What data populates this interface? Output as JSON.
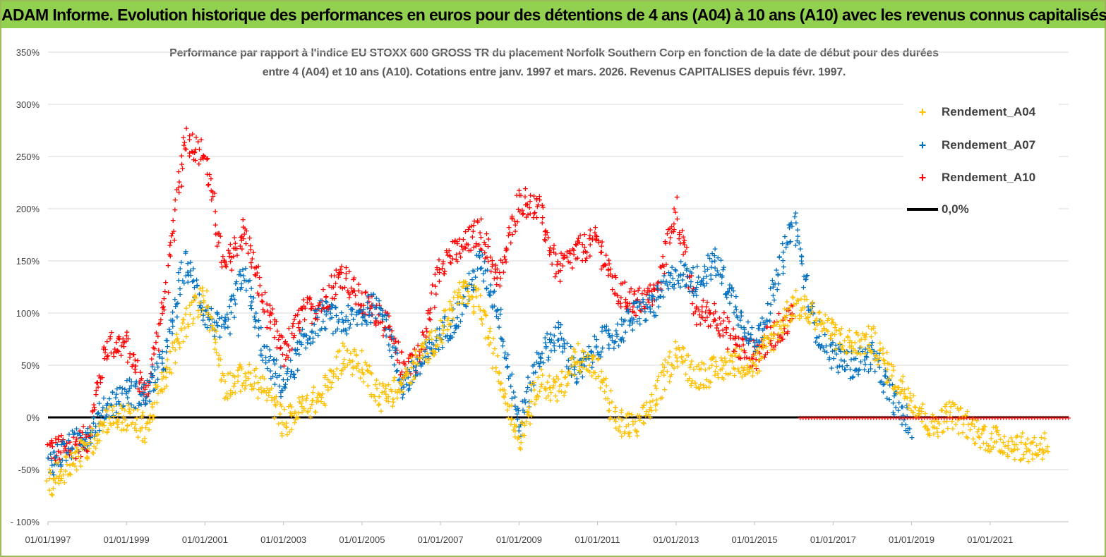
{
  "banner": {
    "text": "ADAM Informe. Evolution historique des performances en euros pour des détentions de 4 ans (A04) à 10 ans (A10) avec les revenus connus capitalisés"
  },
  "colors": {
    "banner_bg": "#92d050",
    "frame": "#9bbb59",
    "series_a04": "#ffc000",
    "series_a07": "#0070c0",
    "series_a10": "#ff0000",
    "zero_line": "#000000",
    "grid": "#d9d9d9"
  },
  "chart_data": {
    "type": "scatter",
    "title_lines": [
      "Performance par rapport à l'indice EU STOXX 600 GROSS TR  du placement Norfolk Southern Corp en fonction de la date de début pour des durées",
      "entre 4 (A04) et 10 ans (A10). Cotations entre janv. 1997 et mars. 2026. Revenus CAPITALISES depuis févr. 1997."
    ],
    "y_ticks": [
      "350%",
      "300%",
      "250%",
      "200%",
      "150%",
      "100%",
      "50%",
      "0%",
      "-50%",
      "- 100%"
    ],
    "ylim": [
      -100,
      350
    ],
    "x_ticks": [
      "01/01/1997",
      "01/01/1999",
      "01/01/2001",
      "01/01/2003",
      "01/01/2005",
      "01/01/2007",
      "01/01/2009",
      "01/01/2011",
      "01/01/2013",
      "01/01/2015",
      "01/01/2017",
      "01/01/2019",
      "01/01/2021"
    ],
    "xlim": [
      "1997-01-01",
      "2023-01-01"
    ],
    "grid": "horizontal",
    "legend_position": "top-right",
    "series": [
      {
        "name": "Rendement_A04",
        "x": [
          "1997-01-01",
          "1997-07-01",
          "1998-01-01",
          "1998-07-01",
          "1999-01-01",
          "1999-07-01",
          "2000-01-01",
          "2000-07-01",
          "2001-01-01",
          "2001-07-01",
          "2002-01-01",
          "2002-07-01",
          "2003-01-01",
          "2003-07-01",
          "2004-01-01",
          "2004-07-01",
          "2005-01-01",
          "2005-07-01",
          "2006-01-01",
          "2006-07-01",
          "2007-01-01",
          "2007-07-01",
          "2008-01-01",
          "2008-07-01",
          "2009-01-01",
          "2009-07-01",
          "2010-01-01",
          "2010-07-01",
          "2011-01-01",
          "2011-07-01",
          "2012-01-01",
          "2012-07-01",
          "2013-01-01",
          "2013-07-01",
          "2014-01-01",
          "2014-07-01",
          "2015-01-01",
          "2015-07-01",
          "2016-01-01",
          "2016-07-01",
          "2017-01-01",
          "2017-07-01",
          "2018-01-01",
          "2018-07-01",
          "2019-01-01",
          "2019-07-01",
          "2020-01-01",
          "2020-07-01",
          "2021-01-01",
          "2021-07-01",
          "2022-01-01",
          "2022-07-01"
        ],
        "y": [
          -65,
          -45,
          -30,
          0,
          0,
          -10,
          40,
          90,
          120,
          30,
          40,
          30,
          -5,
          10,
          20,
          60,
          50,
          20,
          30,
          60,
          80,
          120,
          110,
          40,
          -20,
          35,
          25,
          60,
          45,
          -5,
          -10,
          20,
          65,
          40,
          45,
          55,
          50,
          80,
          110,
          100,
          80,
          70,
          75,
          40,
          20,
          -10,
          5,
          -10,
          -20,
          -25,
          -30,
          -25
        ]
      },
      {
        "name": "Rendement_A07",
        "x": [
          "1997-01-01",
          "1997-07-01",
          "1998-01-01",
          "1998-07-01",
          "1999-01-01",
          "1999-07-01",
          "2000-01-01",
          "2000-07-01",
          "2001-01-01",
          "2001-07-01",
          "2002-01-01",
          "2002-07-01",
          "2003-01-01",
          "2003-07-01",
          "2004-01-01",
          "2004-07-01",
          "2005-01-01",
          "2005-07-01",
          "2006-01-01",
          "2006-07-01",
          "2007-01-01",
          "2007-07-01",
          "2008-01-01",
          "2008-07-01",
          "2009-01-01",
          "2009-07-01",
          "2010-01-01",
          "2010-07-01",
          "2011-01-01",
          "2011-07-01",
          "2012-01-01",
          "2012-07-01",
          "2013-01-01",
          "2013-07-01",
          "2014-01-01",
          "2014-07-01",
          "2015-01-01",
          "2015-07-01",
          "2016-01-01",
          "2016-07-01",
          "2017-01-01",
          "2017-07-01",
          "2018-01-01",
          "2018-07-01",
          "2019-01-01"
        ],
        "y": [
          -45,
          -30,
          -15,
          10,
          25,
          20,
          60,
          150,
          100,
          80,
          140,
          60,
          30,
          70,
          100,
          90,
          100,
          110,
          30,
          50,
          80,
          100,
          150,
          100,
          -10,
          60,
          80,
          40,
          70,
          80,
          100,
          110,
          140,
          130,
          150,
          110,
          70,
          120,
          190,
          90,
          60,
          50,
          60,
          20,
          -10
        ]
      },
      {
        "name": "Rendement_A10",
        "x": [
          "1997-01-01",
          "1997-07-01",
          "1998-01-01",
          "1998-07-01",
          "1999-01-01",
          "1999-07-01",
          "2000-01-01",
          "2000-07-01",
          "2001-01-01",
          "2001-07-01",
          "2002-01-01",
          "2002-07-01",
          "2003-01-01",
          "2003-07-01",
          "2004-01-01",
          "2004-07-01",
          "2005-01-01",
          "2005-07-01",
          "2006-01-01",
          "2006-07-01",
          "2007-01-01",
          "2007-07-01",
          "2008-01-01",
          "2008-07-01",
          "2009-01-01",
          "2009-07-01",
          "2010-01-01",
          "2010-07-01",
          "2011-01-01",
          "2011-07-01",
          "2012-01-01",
          "2012-07-01",
          "2013-01-01",
          "2013-07-01",
          "2014-01-01",
          "2014-07-01",
          "2015-01-01",
          "2015-07-01",
          "2016-01-01"
        ],
        "y": [
          -30,
          -30,
          -20,
          70,
          70,
          20,
          120,
          270,
          250,
          140,
          180,
          110,
          60,
          100,
          110,
          140,
          110,
          100,
          50,
          60,
          150,
          160,
          180,
          130,
          210,
          200,
          140,
          160,
          170,
          120,
          110,
          120,
          200,
          100,
          100,
          70,
          60,
          80,
          100
        ]
      },
      {
        "name": "0,0%",
        "x": [
          "1997-01-01",
          "2023-01-01"
        ],
        "y": [
          0,
          0
        ]
      }
    ]
  }
}
